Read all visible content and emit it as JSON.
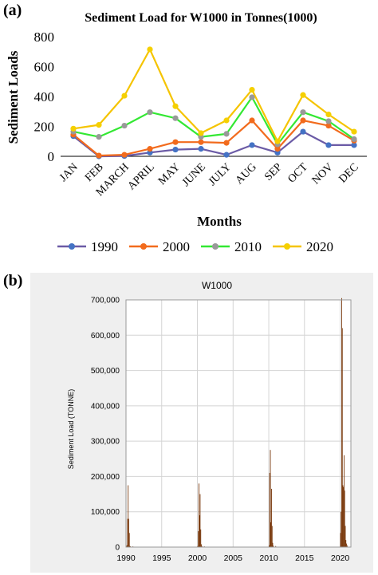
{
  "panels": {
    "a_label": "(a)",
    "b_label": "(b)"
  },
  "chart_data": [
    {
      "type": "line",
      "title": "Sediment Load for W1000 in Tonnes(1000)",
      "xlabel": "Months",
      "ylabel": "Sediment Loads",
      "ylim": [
        0,
        800
      ],
      "yticks": [
        0,
        200,
        400,
        600,
        800
      ],
      "grid": false,
      "legend": "bottom",
      "categories": [
        "JAN",
        "FEB",
        "MARCH",
        "APRIL",
        "MAY",
        "JUNE",
        "JULY",
        "AUG",
        "SEP",
        "OCT",
        "NOV",
        "DEC"
      ],
      "series": [
        {
          "name": "1990",
          "color": "#4472C4",
          "line_color": "#6B5BA6",
          "values": [
            135,
            0,
            2,
            25,
            45,
            50,
            10,
            75,
            25,
            165,
            75,
            75
          ]
        },
        {
          "name": "2000",
          "color": "#F26B1D",
          "line_color": "#F26B1D",
          "values": [
            145,
            5,
            10,
            50,
            95,
            95,
            90,
            240,
            50,
            240,
            205,
            105
          ]
        },
        {
          "name": "2010",
          "color": "#999999",
          "line_color": "#33E833",
          "values": [
            165,
            130,
            205,
            295,
            255,
            130,
            150,
            395,
            80,
            295,
            235,
            115
          ]
        },
        {
          "name": "2020",
          "color": "#F5D000",
          "line_color": "#F5C400",
          "values": [
            185,
            210,
            405,
            715,
            335,
            155,
            240,
            445,
            100,
            410,
            280,
            165
          ]
        }
      ]
    },
    {
      "type": "bar",
      "title": "W1000",
      "xlabel": "",
      "ylabel": "Sediment Load (TONNE)",
      "ylim": [
        0,
        700000
      ],
      "xlim": [
        1990,
        2021.5
      ],
      "yticks": [
        "0",
        "100,000",
        "200,000",
        "300,000",
        "400,000",
        "500,000",
        "600,000",
        "700,000"
      ],
      "ytick_values": [
        0,
        100000,
        200000,
        300000,
        400000,
        500000,
        600000,
        700000
      ],
      "xticks": [
        "1990",
        "1995",
        "2000",
        "2005",
        "2010",
        "2015",
        "2020"
      ],
      "xtick_values": [
        1990,
        1995,
        2000,
        2005,
        2010,
        2015,
        2020
      ],
      "grid": true,
      "bar_color": "#7A3A0E",
      "x": [
        1990.0,
        1990.08,
        1990.17,
        1990.25,
        1990.33,
        1990.42,
        1990.5,
        1990.58,
        1990.67,
        1990.75,
        1990.83,
        1990.92,
        2000.0,
        2000.08,
        2000.17,
        2000.25,
        2000.33,
        2000.42,
        2000.5,
        2000.58,
        2000.67,
        2000.75,
        2000.83,
        2000.92,
        2010.0,
        2010.08,
        2010.17,
        2010.25,
        2010.33,
        2010.42,
        2010.5,
        2010.58,
        2010.67,
        2010.75,
        2010.83,
        2010.92,
        2020.0,
        2020.08,
        2020.17,
        2020.25,
        2020.33,
        2020.42,
        2020.5,
        2020.58,
        2020.67,
        2020.75,
        2020.83,
        2020.92
      ],
      "values": [
        3000,
        5000,
        80000,
        175000,
        80000,
        40000,
        3000,
        2000,
        1000,
        0,
        0,
        2000,
        3000,
        45000,
        180000,
        90000,
        150000,
        50000,
        8000,
        3000,
        1000,
        0,
        0,
        2000,
        5000,
        210000,
        275000,
        70000,
        165000,
        60000,
        12000,
        4000,
        1000,
        0,
        0,
        3000,
        40000,
        100000,
        705000,
        620000,
        175000,
        170000,
        260000,
        160000,
        60000,
        20000,
        10000,
        5000
      ]
    }
  ]
}
